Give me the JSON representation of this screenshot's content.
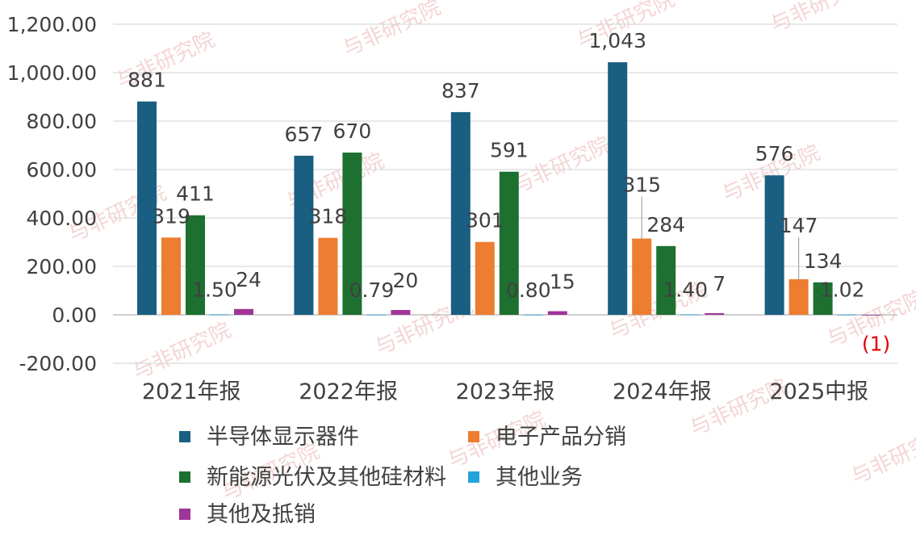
{
  "chart_data": {
    "type": "bar",
    "categories": [
      "2021年报",
      "2022年报",
      "2023年报",
      "2024年报",
      "2025中报"
    ],
    "ylim": [
      -200,
      1200
    ],
    "yticks": [
      -200,
      0,
      200,
      400,
      600,
      800,
      1000,
      1200
    ],
    "ytick_labels": [
      "-200.00",
      "0.00",
      "200.00",
      "400.00",
      "600.00",
      "800.00",
      "1,000.00",
      "1,200.00"
    ],
    "grid": true,
    "legend_position": "bottom",
    "series": [
      {
        "name": "半导体显示器件",
        "color": "#1a5e82",
        "values": [
          881,
          657,
          837,
          1043,
          576
        ],
        "labels": [
          "881",
          "657",
          "837",
          "1,043",
          "576"
        ]
      },
      {
        "name": "电子产品分销",
        "color": "#ed7d31",
        "values": [
          319,
          318,
          301,
          315,
          147
        ],
        "labels": [
          "319",
          "318",
          "301",
          "315",
          "147"
        ]
      },
      {
        "name": "新能源光伏及其他硅材料",
        "color": "#1e7031",
        "values": [
          411,
          670,
          591,
          284,
          134
        ],
        "labels": [
          "411",
          "670",
          "591",
          "284",
          "134"
        ]
      },
      {
        "name": "其他业务",
        "color": "#23a3dd",
        "values": [
          1.5,
          0.79,
          0.8,
          1.4,
          1.02
        ],
        "labels": [
          "1.50",
          "0.79",
          "0.80",
          "1.40",
          "1.02"
        ]
      },
      {
        "name": "其他及抵销",
        "color": "#9f3597",
        "values": [
          24,
          20,
          15,
          7,
          -1
        ],
        "labels": [
          "24",
          "20",
          "15",
          "7",
          "(1)"
        ]
      }
    ]
  },
  "watermark": {
    "text": "与非研究院"
  }
}
